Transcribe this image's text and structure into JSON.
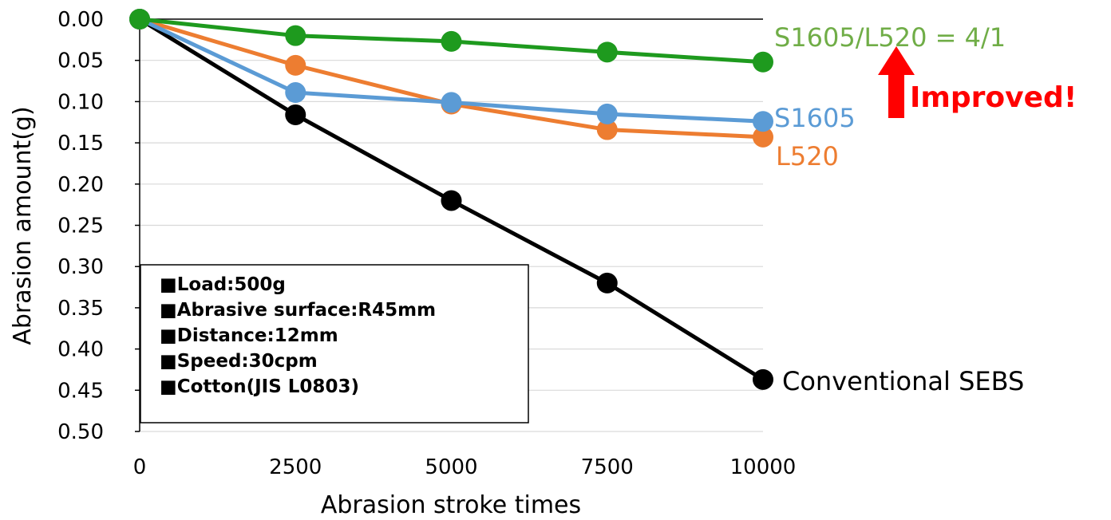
{
  "chart_data": {
    "type": "line",
    "xlabel": "Abrasion stroke times",
    "ylabel": "Abrasion amount(g)",
    "x": [
      0,
      2500,
      5000,
      7500,
      10000
    ],
    "x_ticks": [
      "0",
      "2500",
      "5000",
      "7500",
      "10000"
    ],
    "xlim": [
      0,
      10000
    ],
    "ylim": [
      0.0,
      0.5
    ],
    "y_inverted": true,
    "y_ticks": [
      "0.00",
      "0.05",
      "0.10",
      "0.15",
      "0.20",
      "0.25",
      "0.30",
      "0.35",
      "0.40",
      "0.45",
      "0.50"
    ],
    "y_tick_values": [
      0.0,
      0.05,
      0.1,
      0.15,
      0.2,
      0.25,
      0.3,
      0.35,
      0.4,
      0.45,
      0.5
    ],
    "grid": "horizontal",
    "series": [
      {
        "name": "S1605/L520 = 4/1",
        "color": "#1e9a1e",
        "label_color": "#70ad47",
        "values": [
          0.0,
          0.02,
          0.027,
          0.04,
          0.052
        ]
      },
      {
        "name": "S1605",
        "color": "#5b9bd5",
        "label_color": "#5b9bd5",
        "values": [
          0.0,
          0.089,
          0.101,
          0.115,
          0.124
        ]
      },
      {
        "name": "L520",
        "color": "#ed7d31",
        "label_color": "#ed7d31",
        "values": [
          0.0,
          0.056,
          0.103,
          0.134,
          0.143
        ]
      },
      {
        "name": "Conventional SEBS",
        "color": "#000000",
        "label_color": "#000000",
        "values": [
          0.0,
          0.116,
          0.22,
          0.32,
          0.437
        ]
      }
    ],
    "annotations": {
      "improved_text": "Improved!",
      "improved_color": "#ff0000",
      "conditions": [
        "■Load:500g",
        "■Abrasive surface:R45mm",
        "■Distance:12mm",
        "■Speed:30cpm",
        "■Cotton(JIS L0803)"
      ]
    }
  }
}
